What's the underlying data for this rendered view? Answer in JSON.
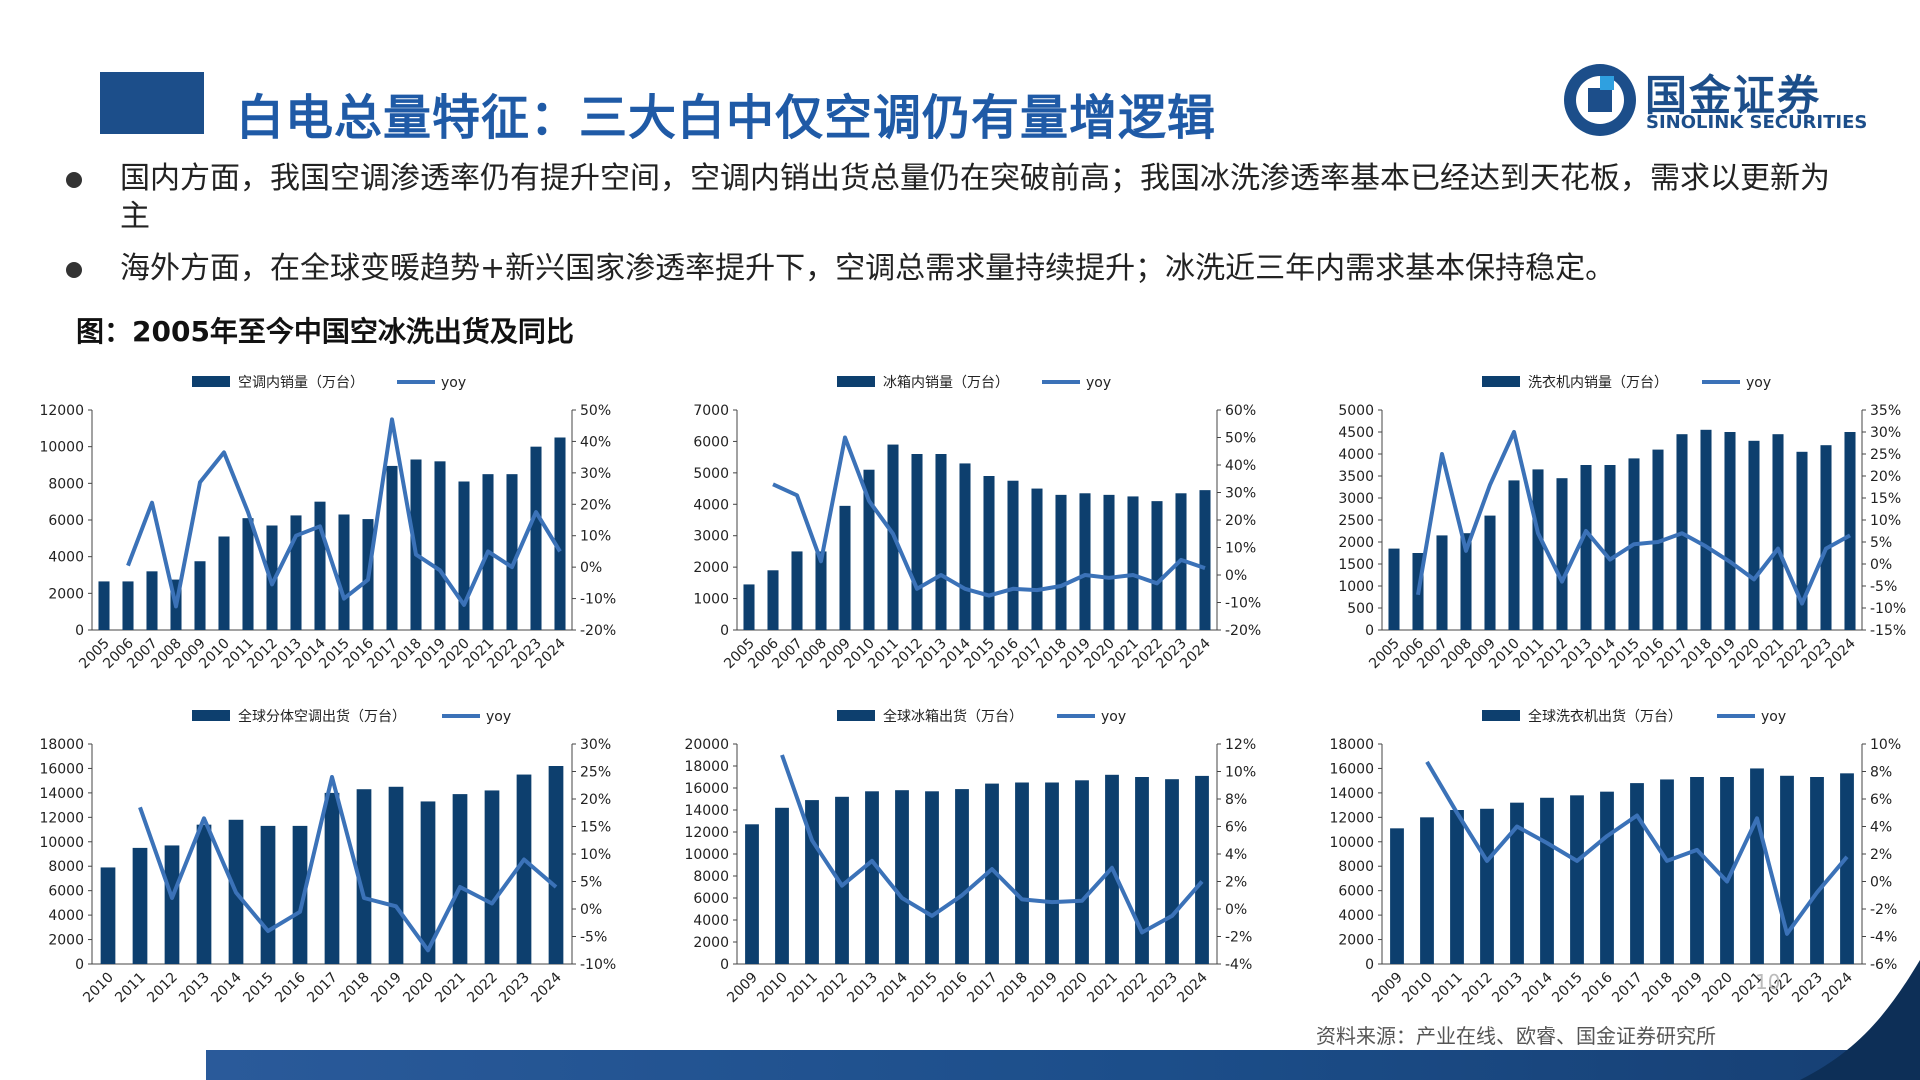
{
  "header": {
    "title": "白电总量特征：三大白中仅空调仍有量增逻辑",
    "logo_cn": "国金证券",
    "logo_en": "SINOLINK SECURITIES"
  },
  "bullets": [
    "国内方面，我国空调渗透率仍有提升空间，空调内销出货总量仍在突破前高；我国冰洗渗透率基本已经达到天花板，需求以更新为主",
    "海外方面，在全球变暖趋势+新兴国家渗透率提升下，空调总需求量持续提升；冰洗近三年内需求基本保持稳定。"
  ],
  "figure_title": "图：2005年至今中国空冰洗出货及同比",
  "source": "资料来源：产业在线、欧睿、国金证券研究所",
  "page_number": "10",
  "colors": {
    "bar": "#0d3f6e",
    "line": "#3b72b8",
    "title": "#1f5aa6",
    "brand": "#1c4e8a"
  },
  "chart_data": [
    {
      "type": "bar",
      "series_names": [
        "空调内销量（万台）",
        "yoy"
      ],
      "categories": [
        "2005",
        "2006",
        "2007",
        "2008",
        "2009",
        "2010",
        "2011",
        "2012",
        "2013",
        "2014",
        "2015",
        "2016",
        "2017",
        "2018",
        "2019",
        "2020",
        "2021",
        "2022",
        "2023",
        "2024"
      ],
      "bars": [
        2650,
        2650,
        3200,
        2750,
        3750,
        5100,
        6100,
        5700,
        6250,
        7000,
        6300,
        6050,
        8950,
        9300,
        9200,
        8100,
        8500,
        8500,
        10000,
        10500
      ],
      "yoy": [
        0.5,
        20.5,
        -12.5,
        27,
        36.5,
        17.5,
        -5.5,
        10,
        13,
        -10,
        -4,
        47,
        4,
        -1,
        -12,
        5,
        0,
        17.5,
        5
      ],
      "yoy_x_start": 1,
      "ylim_left": [
        0,
        12000
      ],
      "ticks_left": [
        "0",
        "2000",
        "4000",
        "6000",
        "8000",
        "10000",
        "12000"
      ],
      "ylim_right": [
        -20,
        50
      ],
      "ticks_right": [
        "-20%",
        "-10%",
        "0%",
        "10%",
        "20%",
        "30%",
        "40%",
        "50%"
      ]
    },
    {
      "type": "bar",
      "series_names": [
        "冰箱内销量（万台）",
        "yoy"
      ],
      "categories": [
        "2005",
        "2006",
        "2007",
        "2008",
        "2009",
        "2010",
        "2011",
        "2012",
        "2013",
        "2014",
        "2015",
        "2016",
        "2017",
        "2018",
        "2019",
        "2020",
        "2021",
        "2022",
        "2023",
        "2024"
      ],
      "bars": [
        1450,
        1900,
        2500,
        2500,
        3950,
        5100,
        5900,
        5600,
        5600,
        5300,
        4900,
        4750,
        4500,
        4300,
        4350,
        4300,
        4250,
        4100,
        4350,
        4450
      ],
      "yoy": [
        33,
        29,
        5,
        50,
        27,
        15,
        -5,
        0,
        -5,
        -7.5,
        -5,
        -5.5,
        -4,
        0,
        -1,
        0,
        -3,
        5.5,
        2.5
      ],
      "yoy_x_start": 1,
      "ylim_left": [
        0,
        7000
      ],
      "ticks_left": [
        "0",
        "1000",
        "2000",
        "3000",
        "4000",
        "5000",
        "6000",
        "7000"
      ],
      "ylim_right": [
        -20,
        60
      ],
      "ticks_right": [
        "-20%",
        "-10%",
        "0%",
        "10%",
        "20%",
        "30%",
        "40%",
        "50%",
        "60%"
      ]
    },
    {
      "type": "bar",
      "series_names": [
        "洗衣机内销量（万台）",
        "yoy"
      ],
      "categories": [
        "2005",
        "2006",
        "2007",
        "2008",
        "2009",
        "2010",
        "2011",
        "2012",
        "2013",
        "2014",
        "2015",
        "2016",
        "2017",
        "2018",
        "2019",
        "2020",
        "2021",
        "2022",
        "2023",
        "2024"
      ],
      "bars": [
        1850,
        1750,
        2150,
        2200,
        2600,
        3400,
        3650,
        3450,
        3750,
        3750,
        3900,
        4100,
        4450,
        4550,
        4500,
        4300,
        4450,
        4050,
        4200,
        4500
      ],
      "yoy": [
        -7,
        25,
        3,
        18,
        30,
        7,
        -4,
        7.5,
        1,
        4.5,
        5,
        7,
        4,
        0.5,
        -3.5,
        3.5,
        -9,
        3.5,
        6.5
      ],
      "yoy_x_start": 1,
      "ylim_left": [
        0,
        5000
      ],
      "ticks_left": [
        "0",
        "500",
        "1000",
        "1500",
        "2000",
        "2500",
        "3000",
        "3500",
        "4000",
        "4500",
        "5000"
      ],
      "ylim_right": [
        -15,
        35
      ],
      "ticks_right": [
        "-15%",
        "-10%",
        "-5%",
        "0%",
        "5%",
        "10%",
        "15%",
        "20%",
        "25%",
        "30%",
        "35%"
      ]
    },
    {
      "type": "bar",
      "series_names": [
        "全球分体空调出货（万台）",
        "yoy"
      ],
      "categories": [
        "2010",
        "2011",
        "2012",
        "2013",
        "2014",
        "2015",
        "2016",
        "2017",
        "2018",
        "2019",
        "2020",
        "2021",
        "2022",
        "2023",
        "2024"
      ],
      "bars": [
        7900,
        9500,
        9700,
        11400,
        11800,
        11300,
        11300,
        14000,
        14300,
        14500,
        13300,
        13900,
        14200,
        15500,
        16200
      ],
      "yoy": [
        18.5,
        2,
        16.5,
        3,
        -4,
        -0.5,
        24,
        2,
        0.5,
        -7.5,
        4,
        1,
        9,
        4
      ],
      "yoy_x_start": 1,
      "ylim_left": [
        0,
        18000
      ],
      "ticks_left": [
        "0",
        "2000",
        "4000",
        "6000",
        "8000",
        "10000",
        "12000",
        "14000",
        "16000",
        "18000"
      ],
      "ylim_right": [
        -10,
        30
      ],
      "ticks_right": [
        "-10%",
        "-5%",
        "0%",
        "5%",
        "10%",
        "15%",
        "20%",
        "25%",
        "30%"
      ]
    },
    {
      "type": "bar",
      "series_names": [
        "全球冰箱出货（万台）",
        "yoy"
      ],
      "categories": [
        "2009",
        "2010",
        "2011",
        "2012",
        "2013",
        "2014",
        "2015",
        "2016",
        "2017",
        "2018",
        "2019",
        "2020",
        "2021",
        "2022",
        "2023",
        "2024"
      ],
      "bars": [
        12700,
        14200,
        14900,
        15200,
        15700,
        15800,
        15700,
        15900,
        16400,
        16500,
        16500,
        16700,
        17200,
        17000,
        16800,
        17100
      ],
      "yoy": [
        11.2,
        5,
        1.7,
        3.5,
        0.8,
        -0.5,
        1,
        2.9,
        0.7,
        0.5,
        0.6,
        3,
        -1.7,
        -0.5,
        2
      ],
      "yoy_x_start": 1,
      "ylim_left": [
        0,
        20000
      ],
      "ticks_left": [
        "0",
        "2000",
        "4000",
        "6000",
        "8000",
        "10000",
        "12000",
        "14000",
        "16000",
        "18000",
        "20000"
      ],
      "ylim_right": [
        -4,
        12
      ],
      "ticks_right": [
        "-4%",
        "-2%",
        "0%",
        "2%",
        "4%",
        "6%",
        "8%",
        "10%",
        "12%"
      ]
    },
    {
      "type": "bar",
      "series_names": [
        "全球洗衣机出货（万台）",
        "yoy"
      ],
      "categories": [
        "2009",
        "2010",
        "2011",
        "2012",
        "2013",
        "2014",
        "2015",
        "2016",
        "2017",
        "2018",
        "2019",
        "2020",
        "2021",
        "2022",
        "2023",
        "2024"
      ],
      "bars": [
        11100,
        12000,
        12600,
        12700,
        13200,
        13600,
        13800,
        14100,
        14800,
        15100,
        15300,
        15300,
        16000,
        15400,
        15300,
        15600
      ],
      "yoy": [
        8.7,
        5,
        1.5,
        4,
        2.8,
        1.5,
        3.3,
        4.8,
        1.5,
        2.3,
        0,
        4.6,
        -3.8,
        -0.8,
        1.8
      ],
      "yoy_x_start": 1,
      "ylim_left": [
        0,
        18000
      ],
      "ticks_left": [
        "0",
        "2000",
        "4000",
        "6000",
        "8000",
        "10000",
        "12000",
        "14000",
        "16000",
        "18000"
      ],
      "ylim_right": [
        -6,
        10
      ],
      "ticks_right": [
        "-6%",
        "-4%",
        "-2%",
        "0%",
        "2%",
        "4%",
        "6%",
        "8%",
        "10%"
      ]
    }
  ]
}
